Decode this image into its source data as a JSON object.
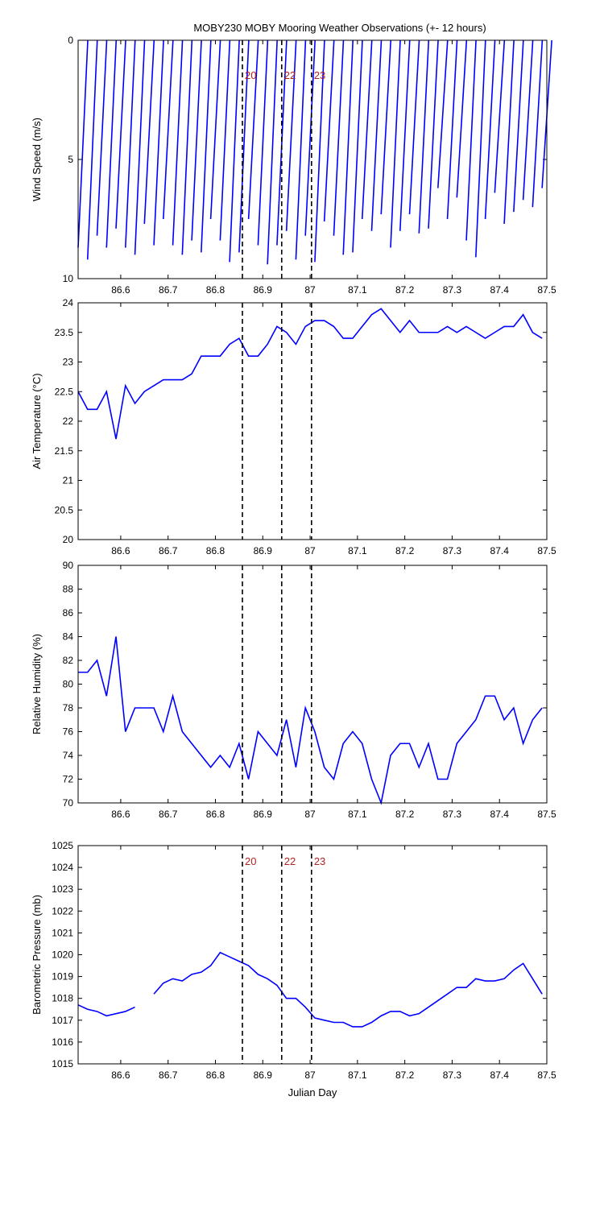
{
  "chart_data": [
    {
      "type": "stick",
      "title": "MOBY230 MOBY Mooring Weather Observations (+- 12 hours)",
      "ylabel": "Wind Speed (m/s)",
      "color": "#0000ff",
      "x": [
        86.51,
        86.53,
        86.55,
        86.57,
        86.59,
        86.61,
        86.63,
        86.65,
        86.67,
        86.69,
        86.71,
        86.73,
        86.75,
        86.77,
        86.79,
        86.81,
        86.83,
        86.85,
        86.87,
        86.89,
        86.91,
        86.93,
        86.95,
        86.97,
        86.99,
        87.01,
        87.03,
        87.05,
        87.07,
        87.09,
        87.11,
        87.13,
        87.15,
        87.17,
        87.19,
        87.21,
        87.23,
        87.25,
        87.27,
        87.29,
        87.31,
        87.33,
        87.35,
        87.37,
        87.39,
        87.41,
        87.43,
        87.45,
        87.47,
        87.49
      ],
      "values": [
        8.7,
        9.2,
        8.2,
        8.7,
        7.9,
        8.7,
        9.0,
        7.7,
        8.6,
        7.5,
        8.6,
        9.0,
        8.4,
        8.9,
        7.5,
        8.4,
        9.3,
        8.9,
        7.5,
        8.6,
        9.4,
        8.6,
        8.0,
        9.2,
        8.2,
        9.3,
        7.6,
        8.2,
        9.0,
        8.9,
        7.5,
        8.0,
        7.3,
        8.7,
        8.0,
        7.3,
        8.1,
        7.9,
        6.2,
        7.5,
        6.6,
        8.4,
        9.1,
        7.5,
        6.4,
        7.7,
        7.2,
        6.7,
        7.0,
        6.2
      ],
      "xlim": [
        86.51,
        87.5
      ],
      "xticks": [
        86.6,
        86.7,
        86.8,
        86.9,
        87,
        87.1,
        87.2,
        87.3,
        87.4,
        87.5
      ],
      "ylim": [
        0,
        10
      ],
      "yticks": [
        0,
        5,
        10
      ],
      "y_reversed": true,
      "vlines": [
        {
          "x": 86.857,
          "label": "20"
        },
        {
          "x": 86.94,
          "label": "22"
        },
        {
          "x": 87.003,
          "label": "23"
        }
      ]
    },
    {
      "type": "line",
      "ylabel": "Air Temperature (°C)",
      "color": "#0000ff",
      "x": [
        86.51,
        86.53,
        86.55,
        86.57,
        86.59,
        86.61,
        86.63,
        86.65,
        86.67,
        86.69,
        86.71,
        86.73,
        86.75,
        86.77,
        86.79,
        86.81,
        86.83,
        86.85,
        86.87,
        86.89,
        86.91,
        86.93,
        86.95,
        86.97,
        86.99,
        87.01,
        87.03,
        87.05,
        87.07,
        87.09,
        87.11,
        87.13,
        87.15,
        87.17,
        87.19,
        87.21,
        87.23,
        87.25,
        87.27,
        87.29,
        87.31,
        87.33,
        87.35,
        87.37,
        87.39,
        87.41,
        87.43,
        87.45,
        87.47,
        87.49
      ],
      "values": [
        22.5,
        22.2,
        22.2,
        22.5,
        21.7,
        22.6,
        22.3,
        22.5,
        22.6,
        22.7,
        22.7,
        22.7,
        22.8,
        23.1,
        23.1,
        23.1,
        23.3,
        23.4,
        23.1,
        23.1,
        23.3,
        23.6,
        23.5,
        23.3,
        23.6,
        23.7,
        23.7,
        23.6,
        23.4,
        23.4,
        23.6,
        23.8,
        23.9,
        23.7,
        23.5,
        23.7,
        23.5,
        23.5,
        23.5,
        23.6,
        23.5,
        23.6,
        23.5,
        23.4,
        23.5,
        23.6,
        23.6,
        23.8,
        23.5,
        23.4
      ],
      "xlim": [
        86.51,
        87.5
      ],
      "xticks": [
        86.6,
        86.7,
        86.8,
        86.9,
        87,
        87.1,
        87.2,
        87.3,
        87.4,
        87.5
      ],
      "ylim": [
        20,
        24
      ],
      "yticks": [
        20,
        20.5,
        21,
        21.5,
        22,
        22.5,
        23,
        23.5,
        24
      ],
      "vlines": [
        {
          "x": 86.857
        },
        {
          "x": 86.94
        },
        {
          "x": 87.003
        }
      ]
    },
    {
      "type": "line",
      "ylabel": "Relative Humidity (%)",
      "color": "#0000ff",
      "x": [
        86.51,
        86.53,
        86.55,
        86.57,
        86.59,
        86.61,
        86.63,
        86.65,
        86.67,
        86.69,
        86.71,
        86.73,
        86.75,
        86.77,
        86.79,
        86.81,
        86.83,
        86.85,
        86.87,
        86.89,
        86.91,
        86.93,
        86.95,
        86.97,
        86.99,
        87.01,
        87.03,
        87.05,
        87.07,
        87.09,
        87.11,
        87.13,
        87.15,
        87.17,
        87.19,
        87.21,
        87.23,
        87.25,
        87.27,
        87.29,
        87.31,
        87.33,
        87.35,
        87.37,
        87.39,
        87.41,
        87.43,
        87.45,
        87.47,
        87.49
      ],
      "values": [
        81,
        81,
        82,
        79,
        84,
        76,
        78,
        78,
        78,
        76,
        79,
        76,
        75,
        74,
        73,
        74,
        73,
        75,
        72,
        76,
        75,
        74,
        77,
        73,
        78,
        76,
        73,
        72,
        75,
        76,
        75,
        72,
        70,
        74,
        75,
        75,
        73,
        75,
        72,
        72,
        75,
        76,
        77,
        79,
        79,
        77,
        78,
        75,
        77,
        78
      ],
      "xlim": [
        86.51,
        87.5
      ],
      "xticks": [
        86.6,
        86.7,
        86.8,
        86.9,
        87,
        87.1,
        87.2,
        87.3,
        87.4,
        87.5
      ],
      "ylim": [
        70,
        90
      ],
      "yticks": [
        70,
        72,
        74,
        76,
        78,
        80,
        82,
        84,
        86,
        88,
        90
      ],
      "vlines": [
        {
          "x": 86.857
        },
        {
          "x": 86.94
        },
        {
          "x": 87.003
        }
      ]
    },
    {
      "type": "line",
      "ylabel": "Barometric Pressure (mb)",
      "xlabel": "Julian Day",
      "color": "#0000ff",
      "x": [
        86.51,
        86.53,
        86.55,
        86.57,
        86.59,
        86.61,
        86.63,
        86.65,
        86.67,
        86.69,
        86.71,
        86.73,
        86.75,
        86.77,
        86.79,
        86.81,
        86.83,
        86.85,
        86.87,
        86.89,
        86.91,
        86.93,
        86.95,
        86.97,
        86.99,
        87.01,
        87.03,
        87.05,
        87.07,
        87.09,
        87.11,
        87.13,
        87.15,
        87.17,
        87.19,
        87.21,
        87.23,
        87.25,
        87.27,
        87.29,
        87.31,
        87.33,
        87.35,
        87.37,
        87.39,
        87.41,
        87.43,
        87.45,
        87.47,
        87.49
      ],
      "values": [
        1017.7,
        1017.5,
        1017.4,
        1017.2,
        1017.3,
        1017.4,
        1017.6,
        null,
        1018.2,
        1018.7,
        1018.9,
        1018.8,
        1019.1,
        1019.2,
        1019.5,
        1020.1,
        1019.9,
        1019.7,
        1019.5,
        1019.1,
        1018.9,
        1018.6,
        1018.0,
        1018.0,
        1017.6,
        1017.1,
        1017.0,
        1016.9,
        1016.9,
        1016.7,
        1016.7,
        1016.9,
        1017.2,
        1017.4,
        1017.4,
        1017.2,
        1017.3,
        1017.6,
        1017.9,
        1018.2,
        1018.5,
        1018.5,
        1018.9,
        1018.8,
        1018.8,
        1018.9,
        1019.3,
        1019.6,
        1018.9,
        1018.2
      ],
      "xlim": [
        86.51,
        87.5
      ],
      "xticks": [
        86.6,
        86.7,
        86.8,
        86.9,
        87,
        87.1,
        87.2,
        87.3,
        87.4,
        87.5
      ],
      "ylim": [
        1015,
        1025
      ],
      "yticks": [
        1015,
        1016,
        1017,
        1018,
        1019,
        1020,
        1021,
        1022,
        1023,
        1024,
        1025
      ],
      "vlines": [
        {
          "x": 86.857,
          "label": "20"
        },
        {
          "x": 86.94,
          "label": "22"
        },
        {
          "x": 87.003,
          "label": "23"
        }
      ]
    }
  ]
}
